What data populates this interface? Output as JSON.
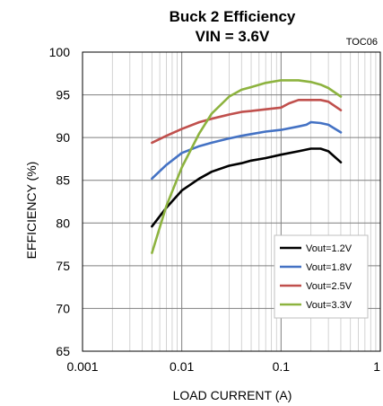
{
  "chart_data": {
    "type": "line",
    "title": "Buck 2 Efficiency",
    "subtitle": "VIN = 3.6V",
    "tag": "TOC06",
    "xlabel": "LOAD CURRENT (A)",
    "ylabel": "EFFICIENCY (%)",
    "x_scale": "log",
    "xlim": [
      0.001,
      1
    ],
    "ylim": [
      65,
      100
    ],
    "x_ticks": [
      "0.001",
      "0.01",
      "0.1",
      "1"
    ],
    "y_ticks": [
      "65",
      "70",
      "75",
      "80",
      "85",
      "90",
      "95",
      "100"
    ],
    "grid": true,
    "legend_position": "bottom-right",
    "series": [
      {
        "name": "Vout=1.2V",
        "color": "#000000",
        "x": [
          0.005,
          0.007,
          0.01,
          0.015,
          0.02,
          0.03,
          0.04,
          0.05,
          0.07,
          0.1,
          0.15,
          0.2,
          0.25,
          0.3,
          0.4
        ],
        "y": [
          79.6,
          81.8,
          83.8,
          85.2,
          86.0,
          86.7,
          87.0,
          87.3,
          87.6,
          88.0,
          88.4,
          88.7,
          88.7,
          88.4,
          87.1
        ]
      },
      {
        "name": "Vout=1.8V",
        "color": "#4472c4",
        "x": [
          0.005,
          0.007,
          0.01,
          0.015,
          0.02,
          0.03,
          0.04,
          0.05,
          0.07,
          0.1,
          0.15,
          0.18,
          0.2,
          0.25,
          0.3,
          0.4
        ],
        "y": [
          85.2,
          86.8,
          88.2,
          89.0,
          89.4,
          89.9,
          90.2,
          90.4,
          90.7,
          90.9,
          91.3,
          91.5,
          91.8,
          91.7,
          91.5,
          90.6
        ]
      },
      {
        "name": "Vout=2.5V",
        "color": "#c0504d",
        "x": [
          0.005,
          0.007,
          0.01,
          0.015,
          0.02,
          0.03,
          0.04,
          0.05,
          0.07,
          0.1,
          0.12,
          0.15,
          0.2,
          0.25,
          0.3,
          0.4
        ],
        "y": [
          89.4,
          90.2,
          91.0,
          91.8,
          92.2,
          92.7,
          93.0,
          93.1,
          93.3,
          93.5,
          94.0,
          94.4,
          94.4,
          94.4,
          94.2,
          93.2
        ]
      },
      {
        "name": "Vout=3.3V",
        "color": "#8db33f",
        "x": [
          0.005,
          0.007,
          0.01,
          0.015,
          0.02,
          0.03,
          0.04,
          0.05,
          0.07,
          0.1,
          0.15,
          0.2,
          0.25,
          0.3,
          0.4
        ],
        "y": [
          76.5,
          82.0,
          86.5,
          90.5,
          92.8,
          94.8,
          95.6,
          95.9,
          96.4,
          96.7,
          96.7,
          96.5,
          96.2,
          95.8,
          94.8
        ]
      }
    ]
  }
}
